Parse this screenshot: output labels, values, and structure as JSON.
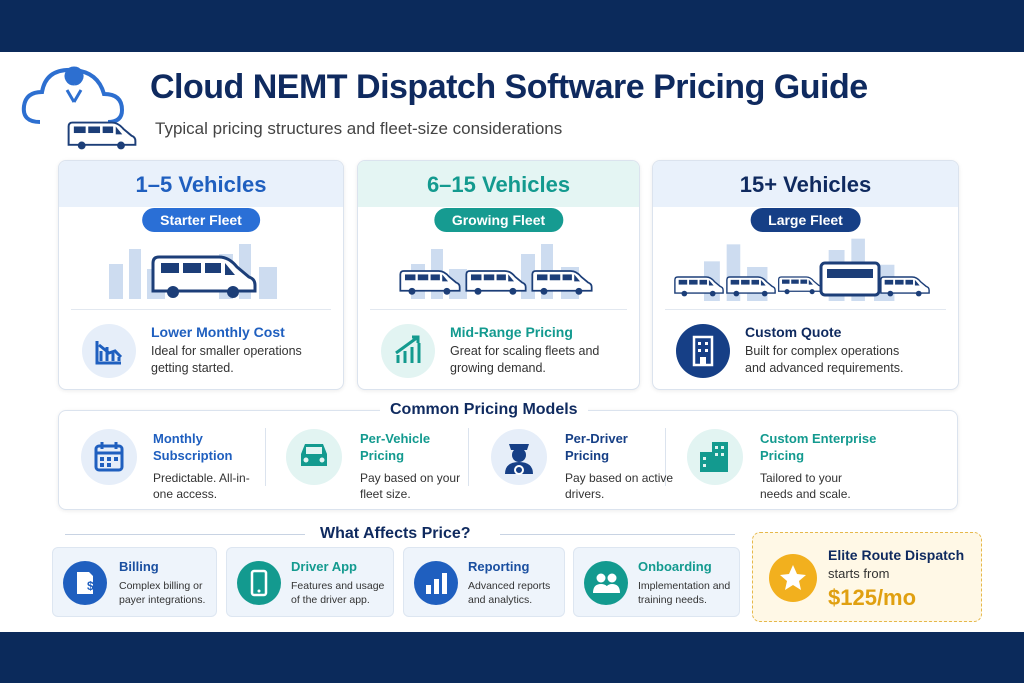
{
  "header": {
    "title": "Cloud NEMT Dispatch Software Pricing Guide",
    "subtitle": "Typical pricing structures and fleet-size considerations"
  },
  "tiers": [
    {
      "title": "1–5 Vehicles",
      "badge": "Starter Fleet",
      "heading": "Lower Monthly Cost",
      "description": "Ideal for smaller operations getting started."
    },
    {
      "title": "6–15 Vehicles",
      "badge": "Growing Fleet",
      "heading": "Mid-Range Pricing",
      "description": "Great for scaling fleets and growing demand."
    },
    {
      "title": "15+ Vehicles",
      "badge": "Large Fleet",
      "heading": "Custom Quote",
      "description": "Built for complex operations and advanced requirements."
    }
  ],
  "pricing_models": {
    "title": "Common Pricing Models",
    "items": [
      {
        "title": "Monthly Subscription",
        "description": "Predictable. All-in-one access."
      },
      {
        "title": "Per-Vehicle Pricing",
        "description": "Pay based on your fleet size."
      },
      {
        "title": "Per-Driver Pricing",
        "description": "Pay based on active drivers."
      },
      {
        "title": "Custom Enterprise Pricing",
        "description": "Tailored to your needs and scale."
      }
    ]
  },
  "factors": {
    "title": "What Affects Price?",
    "items": [
      {
        "title": "Billing",
        "description": "Complex billing or payer integrations."
      },
      {
        "title": "Driver App",
        "description": "Features and usage of the driver app."
      },
      {
        "title": "Reporting",
        "description": "Advanced reports and analytics."
      },
      {
        "title": "Onboarding",
        "description": "Implementation and training needs."
      }
    ]
  },
  "promo": {
    "name": "Elite Route Dispatch",
    "label": "starts from",
    "price": "$125/mo"
  }
}
